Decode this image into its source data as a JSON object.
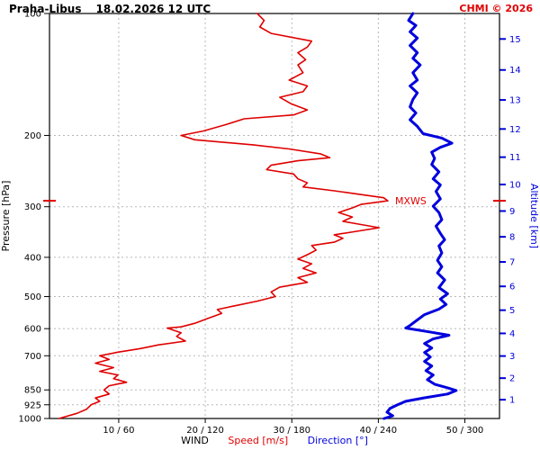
{
  "header": {
    "station": "Praha-Libus",
    "datetime": "18.02.2026 12 UTC",
    "copyright": "CHMI © 2026"
  },
  "legend": {
    "wind": "WIND",
    "speed": "Speed [m/s]",
    "direction": "Direction [°]"
  },
  "colors": {
    "speed": "#e00000",
    "direction": "#0000dd",
    "grid": "#b8b8b8",
    "axis": "#000000"
  },
  "chart_data": {
    "type": "line",
    "title": "Praha-Libus 18.02.2026 12 UTC",
    "grid": true,
    "legend_position": "bottom",
    "x_axis": {
      "tick_labels": [
        "10 / 60",
        "20 / 120",
        "30 / 180",
        "40 / 240",
        "50 / 300"
      ],
      "speed_ticks": [
        10,
        20,
        30,
        40,
        50
      ],
      "direction_ticks": [
        60,
        120,
        180,
        240,
        300
      ],
      "speed_range": [
        2,
        54
      ],
      "direction_range": [
        12,
        324
      ],
      "label_wind": "WIND",
      "label_speed": "Speed [m/s]",
      "label_direction": "Direction [°]"
    },
    "y_axis": {
      "label": "Pressure [hPa]",
      "scale": "log",
      "range": [
        100,
        1000
      ],
      "ticks": [
        100,
        200,
        300,
        400,
        500,
        600,
        700,
        850,
        925,
        1000
      ]
    },
    "y2_axis": {
      "label": "Altitude [km]",
      "ticks": [
        1,
        2,
        3,
        4,
        5,
        6,
        7,
        8,
        9,
        10,
        11,
        12,
        13,
        14,
        15
      ]
    },
    "annotations": [
      {
        "text": "MXWS",
        "pressure": 290,
        "speed": 41.1
      }
    ],
    "series": [
      {
        "name": "Wind Speed",
        "unit": "m/s",
        "axis": "speed",
        "color": "#e00000",
        "width": 1.6,
        "points": [
          [
            100,
            26.0
          ],
          [
            104,
            26.8
          ],
          [
            108,
            26.3
          ],
          [
            112,
            27.6
          ],
          [
            117,
            32.3
          ],
          [
            121,
            31.8
          ],
          [
            125,
            30.7
          ],
          [
            130,
            31.6
          ],
          [
            134,
            30.7
          ],
          [
            140,
            31.3
          ],
          [
            146,
            29.7
          ],
          [
            151,
            31.8
          ],
          [
            156,
            31.3
          ],
          [
            161,
            28.6
          ],
          [
            167,
            29.9
          ],
          [
            173,
            31.8
          ],
          [
            178,
            30.2
          ],
          [
            182,
            24.5
          ],
          [
            188,
            22.4
          ],
          [
            195,
            19.8
          ],
          [
            200,
            17.2
          ],
          [
            205,
            18.8
          ],
          [
            211,
            25.5
          ],
          [
            216,
            29.7
          ],
          [
            222,
            33.3
          ],
          [
            227,
            34.4
          ],
          [
            231,
            30.7
          ],
          [
            237,
            27.6
          ],
          [
            243,
            27.1
          ],
          [
            249,
            30.2
          ],
          [
            256,
            30.7
          ],
          [
            262,
            31.8
          ],
          [
            268,
            31.3
          ],
          [
            274,
            34.9
          ],
          [
            280,
            38.0
          ],
          [
            285,
            40.6
          ],
          [
            290,
            41.1
          ],
          [
            296,
            38.0
          ],
          [
            302,
            37.0
          ],
          [
            310,
            35.4
          ],
          [
            318,
            37.0
          ],
          [
            326,
            35.9
          ],
          [
            332,
            38.0
          ],
          [
            338,
            40.1
          ],
          [
            345,
            37.5
          ],
          [
            352,
            34.9
          ],
          [
            359,
            35.9
          ],
          [
            367,
            34.9
          ],
          [
            374,
            32.3
          ],
          [
            384,
            32.8
          ],
          [
            394,
            31.8
          ],
          [
            404,
            30.7
          ],
          [
            415,
            32.3
          ],
          [
            426,
            31.3
          ],
          [
            437,
            32.8
          ],
          [
            449,
            30.7
          ],
          [
            461,
            31.8
          ],
          [
            474,
            28.6
          ],
          [
            487,
            27.6
          ],
          [
            500,
            28.1
          ],
          [
            513,
            26.0
          ],
          [
            527,
            23.4
          ],
          [
            538,
            21.4
          ],
          [
            550,
            21.9
          ],
          [
            566,
            20.3
          ],
          [
            582,
            18.8
          ],
          [
            594,
            17.2
          ],
          [
            598,
            15.6
          ],
          [
            614,
            17.2
          ],
          [
            627,
            16.7
          ],
          [
            644,
            17.7
          ],
          [
            658,
            14.6
          ],
          [
            672,
            12.5
          ],
          [
            686,
            9.9
          ],
          [
            700,
            7.8
          ],
          [
            715,
            8.9
          ],
          [
            730,
            7.3
          ],
          [
            749,
            9.4
          ],
          [
            765,
            7.8
          ],
          [
            781,
            9.9
          ],
          [
            797,
            9.4
          ],
          [
            814,
            10.9
          ],
          [
            830,
            8.9
          ],
          [
            850,
            8.3
          ],
          [
            870,
            8.9
          ],
          [
            890,
            7.3
          ],
          [
            907,
            7.8
          ],
          [
            925,
            6.8
          ],
          [
            948,
            6.3
          ],
          [
            971,
            5.2
          ],
          [
            1000,
            3.1
          ]
        ]
      },
      {
        "name": "Wind Direction",
        "unit": "deg",
        "axis": "direction",
        "color": "#0000dd",
        "width": 3,
        "points": [
          [
            100,
            264
          ],
          [
            104,
            261
          ],
          [
            107,
            266
          ],
          [
            111,
            262
          ],
          [
            115,
            267
          ],
          [
            120,
            262
          ],
          [
            125,
            267
          ],
          [
            129,
            264
          ],
          [
            134,
            269
          ],
          [
            140,
            264
          ],
          [
            146,
            267
          ],
          [
            151,
            262
          ],
          [
            157,
            267
          ],
          [
            163,
            264
          ],
          [
            170,
            262
          ],
          [
            176,
            266
          ],
          [
            183,
            262
          ],
          [
            190,
            267
          ],
          [
            198,
            271
          ],
          [
            203,
            284
          ],
          [
            209,
            291
          ],
          [
            214,
            283
          ],
          [
            220,
            277
          ],
          [
            228,
            279
          ],
          [
            236,
            277
          ],
          [
            246,
            282
          ],
          [
            256,
            278
          ],
          [
            265,
            283
          ],
          [
            275,
            280
          ],
          [
            287,
            283
          ],
          [
            299,
            278
          ],
          [
            310,
            282
          ],
          [
            323,
            284
          ],
          [
            335,
            280
          ],
          [
            349,
            283
          ],
          [
            362,
            286
          ],
          [
            375,
            282
          ],
          [
            390,
            284
          ],
          [
            407,
            281
          ],
          [
            422,
            284
          ],
          [
            437,
            281
          ],
          [
            455,
            286
          ],
          [
            475,
            282
          ],
          [
            492,
            288
          ],
          [
            507,
            283
          ],
          [
            523,
            287
          ],
          [
            537,
            282
          ],
          [
            554,
            272
          ],
          [
            571,
            267
          ],
          [
            589,
            262
          ],
          [
            598,
            259
          ],
          [
            611,
            275
          ],
          [
            623,
            289
          ],
          [
            636,
            278
          ],
          [
            653,
            272
          ],
          [
            670,
            277
          ],
          [
            687,
            272
          ],
          [
            705,
            276
          ],
          [
            723,
            272
          ],
          [
            742,
            277
          ],
          [
            762,
            273
          ],
          [
            781,
            278
          ],
          [
            802,
            274
          ],
          [
            823,
            279
          ],
          [
            840,
            288
          ],
          [
            853,
            294
          ],
          [
            870,
            288
          ],
          [
            889,
            272
          ],
          [
            907,
            259
          ],
          [
            926,
            253
          ],
          [
            945,
            248
          ],
          [
            965,
            246
          ],
          [
            985,
            250
          ],
          [
            1000,
            244
          ]
        ]
      }
    ]
  }
}
